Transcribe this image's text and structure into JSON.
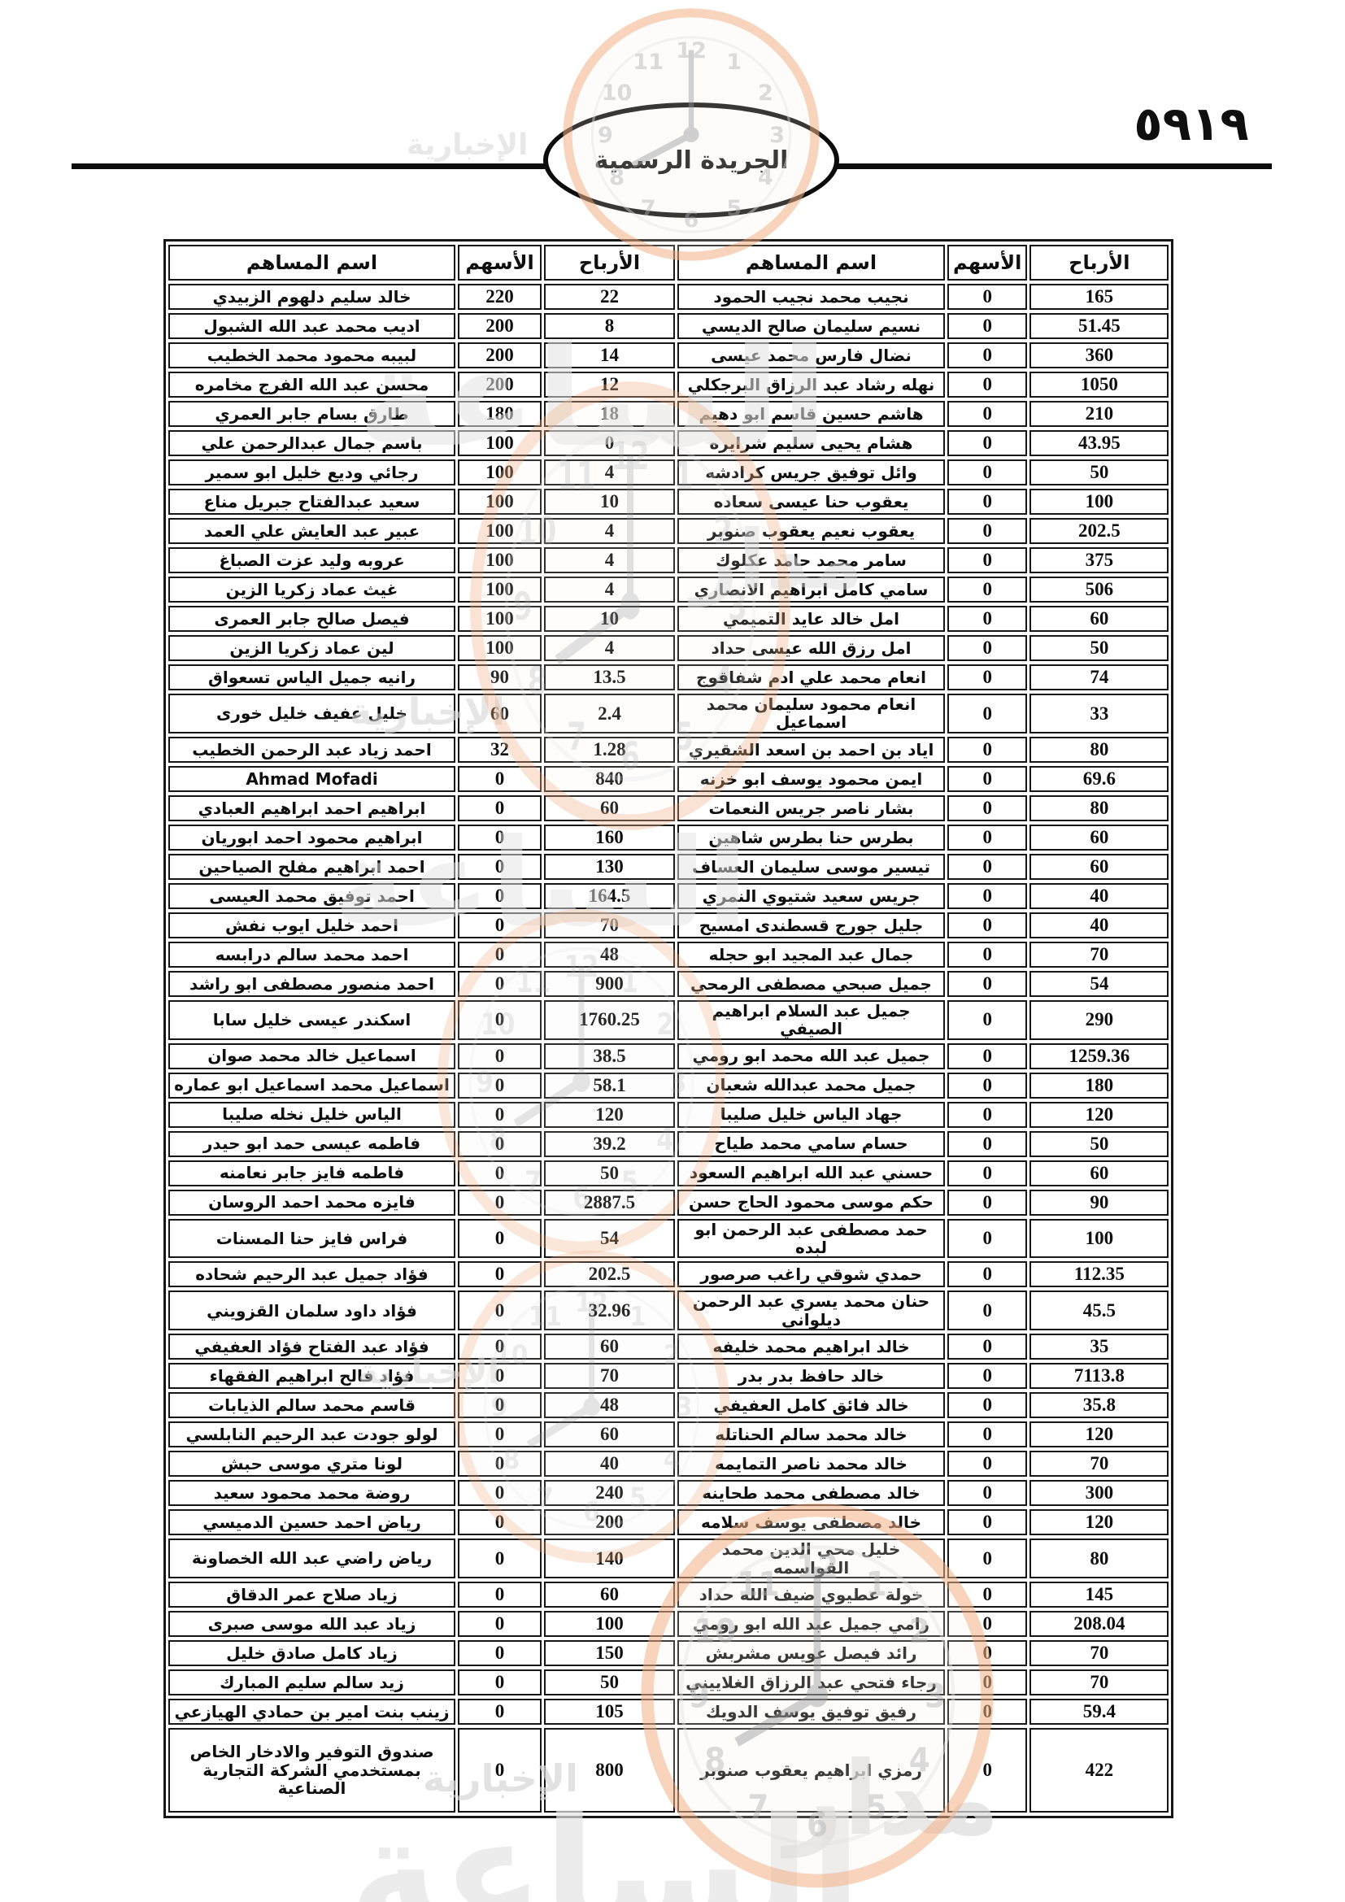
{
  "page": {
    "number_arabic": "٥٩١٩"
  },
  "header": {
    "gazette_title": "الجريدة الرسمية"
  },
  "watermark": {
    "agency_word_madar": "مدار",
    "agency_word_saa": "الساعة",
    "agency_word_akhbaria": "الإخبارية"
  },
  "table": {
    "columns": {
      "name": "اسم المساهم",
      "shares": "الأسهم",
      "profits": "الأرباح"
    },
    "left_rows": [
      [
        "خالد سليم دلهوم الزبيدي",
        "220",
        "22"
      ],
      [
        "اديب محمد عبد الله الشبول",
        "200",
        "8"
      ],
      [
        "لبيبه محمود محمد الخطيب",
        "200",
        "14"
      ],
      [
        "محسن عبد الله الفرج مخامره",
        "200",
        "12"
      ],
      [
        "طارق بسام جابر العمري",
        "180",
        "18"
      ],
      [
        "باسم جمال عبدالرحمن علي",
        "100",
        "0"
      ],
      [
        "رجائي وديع خليل ابو سمير",
        "100",
        "4"
      ],
      [
        "سعيد عبدالفتاح جبريل مناع",
        "100",
        "10"
      ],
      [
        "عبير عبد العايش علي العمد",
        "100",
        "4"
      ],
      [
        "عروبه وليد عزت الصباغ",
        "100",
        "4"
      ],
      [
        "غيث عماد زكريا الزين",
        "100",
        "4"
      ],
      [
        "فيصل صالح جابر العمرى",
        "100",
        "10"
      ],
      [
        "لين عماد زكريا الزين",
        "100",
        "4"
      ],
      [
        "رانيه جميل الياس تسعواق",
        "90",
        "13.5"
      ],
      [
        "خليل عفيف خليل خورى",
        "60",
        "2.4"
      ],
      [
        "احمد زياد عبد الرحمن الخطيب",
        "32",
        "1.28"
      ],
      [
        "Ahmad Mofadi",
        "0",
        "840"
      ],
      [
        "ابراهيم احمد ابراهيم العبادي",
        "0",
        "60"
      ],
      [
        "ابراهيم محمود احمد ابوريان",
        "0",
        "160"
      ],
      [
        "احمد ابراهيم مفلح الصياحين",
        "0",
        "130"
      ],
      [
        "احمد توفيق محمد العيسى",
        "0",
        "164.5"
      ],
      [
        "احمد خليل ايوب نفش",
        "0",
        "70"
      ],
      [
        "احمد محمد سالم درابسه",
        "0",
        "48"
      ],
      [
        "احمد منصور مصطفى ابو راشد",
        "0",
        "900"
      ],
      [
        "اسكندر عيسى خليل سابا",
        "0",
        "1760.25"
      ],
      [
        "اسماعيل خالد محمد صوان",
        "0",
        "38.5"
      ],
      [
        "اسماعيل محمد اسماعيل ابو عماره",
        "0",
        "58.1"
      ],
      [
        "الياس خليل نخله صليبا",
        "0",
        "120"
      ],
      [
        "فاطمه عيسى حمد ابو حيدر",
        "0",
        "39.2"
      ],
      [
        "فاطمه فايز جابر نعامنه",
        "0",
        "50"
      ],
      [
        "فايزه محمد احمد الروسان",
        "0",
        "2887.5"
      ],
      [
        "فراس فايز حنا المسنات",
        "0",
        "54"
      ],
      [
        "فؤاد جميل عبد الرحيم شحاده",
        "0",
        "202.5"
      ],
      [
        "فؤاد داود سلمان القزويني",
        "0",
        "32.96"
      ],
      [
        "فؤاد عبد الفتاح فؤاد العفيفي",
        "0",
        "60"
      ],
      [
        "فؤاد فالح ابراهيم الفقهاء",
        "0",
        "70"
      ],
      [
        "قاسم محمد سالم الذيابات",
        "0",
        "48"
      ],
      [
        "لولو جودت عبد الرحيم النابلسي",
        "0",
        "60"
      ],
      [
        "لونا متري موسى حبش",
        "0",
        "40"
      ],
      [
        "روضة محمد محمود سعيد",
        "0",
        "240"
      ],
      [
        "رياض احمد حسين الدميسي",
        "0",
        "200"
      ],
      [
        "رياض راضي عبد الله الخصاونة",
        "0",
        "140"
      ],
      [
        "زياد صلاح عمر الدقاق",
        "0",
        "60"
      ],
      [
        "زياد عبد الله موسى صبرى",
        "0",
        "100"
      ],
      [
        "زياد كامل صادق خليل",
        "0",
        "150"
      ],
      [
        "زيد سالم سليم المبارك",
        "0",
        "50"
      ],
      [
        "زينب بنت امير بن حمادي الهيازعي",
        "0",
        "105"
      ],
      [
        "صندوق التوفير والادخار الخاص بمستخدمي الشركة التجارية الصناعية",
        "0",
        "800"
      ]
    ],
    "right_rows": [
      [
        "نجيب محمد نجيب الحمود",
        "0",
        "165"
      ],
      [
        "نسيم سليمان صالح الديسي",
        "0",
        "51.45"
      ],
      [
        "نضال فارس محمد عيسى",
        "0",
        "360"
      ],
      [
        "نهله رشاد عبد الرزاق البرجكلي",
        "0",
        "1050"
      ],
      [
        "هاشم حسين قاسم ابو دهيم",
        "0",
        "210"
      ],
      [
        "هشام يحيى سليم شرايره",
        "0",
        "43.95"
      ],
      [
        "وائل توفيق جريس كرادشه",
        "0",
        "50"
      ],
      [
        "يعقوب حنا عيسى سعاده",
        "0",
        "100"
      ],
      [
        "يعقوب نعيم يعقوب صنوبر",
        "0",
        "202.5"
      ],
      [
        "سامر محمد حامد عكلوك",
        "0",
        "375"
      ],
      [
        "سامي كامل ابراهيم الانصاري",
        "0",
        "506"
      ],
      [
        "امل خالد عايد التميمي",
        "0",
        "60"
      ],
      [
        "امل رزق الله عيسى حداد",
        "0",
        "50"
      ],
      [
        "انعام محمد علي ادم شفاقوج",
        "0",
        "74"
      ],
      [
        "انعام محمود سليمان محمد اسماعيل",
        "0",
        "33"
      ],
      [
        "اياد بن احمد بن اسعد الشقيري",
        "0",
        "80"
      ],
      [
        "ايمن محمود يوسف ابو خزنه",
        "0",
        "69.6"
      ],
      [
        "بشار ناصر جريس النعمات",
        "0",
        "80"
      ],
      [
        "بطرس حنا بطرس شاهين",
        "0",
        "60"
      ],
      [
        "تيسير موسى سليمان العساف",
        "0",
        "60"
      ],
      [
        "جريس سعيد شتيوي النمري",
        "0",
        "40"
      ],
      [
        "جليل جورج قسطندى امسيح",
        "0",
        "40"
      ],
      [
        "جمال عبد المجيد ابو حجله",
        "0",
        "70"
      ],
      [
        "جميل صبحي مصطفى الرمحي",
        "0",
        "54"
      ],
      [
        "جميل عبد السلام ابراهيم الصيفي",
        "0",
        "290"
      ],
      [
        "جميل عبد الله محمد ابو رومي",
        "0",
        "1259.36"
      ],
      [
        "جميل محمد عبدالله شعبان",
        "0",
        "180"
      ],
      [
        "جهاد الياس خليل صليبا",
        "0",
        "120"
      ],
      [
        "حسام سامي محمد طياح",
        "0",
        "50"
      ],
      [
        "حسني عبد الله ابراهيم السعود",
        "0",
        "60"
      ],
      [
        "حكم موسى محمود الحاج حسن",
        "0",
        "90"
      ],
      [
        "حمد مصطفى عبد الرحمن ابو لبده",
        "0",
        "100"
      ],
      [
        "حمدي شوقي راغب صرصور",
        "0",
        "112.35"
      ],
      [
        "حنان محمد يسري عبد الرحمن ديلواني",
        "0",
        "45.5"
      ],
      [
        "خالد ابراهيم محمد خليفه",
        "0",
        "35"
      ],
      [
        "خالد حافظ بدر بدر",
        "0",
        "7113.8"
      ],
      [
        "خالد فائق كامل العفيفي",
        "0",
        "35.8"
      ],
      [
        "خالد محمد سالم الحناتله",
        "0",
        "120"
      ],
      [
        "خالد محمد ناصر التمايمه",
        "0",
        "70"
      ],
      [
        "خالد مصطفى محمد طحاينه",
        "0",
        "300"
      ],
      [
        "خالد مصطفى يوسف سلامه",
        "0",
        "120"
      ],
      [
        "خليل محي الدين محمد القواسمه",
        "0",
        "80"
      ],
      [
        "خولة عطيوي ضيف الله حداد",
        "0",
        "145"
      ],
      [
        "رامي جميل عبد الله ابو رومي",
        "0",
        "208.04"
      ],
      [
        "رائد فيصل عويس مشربش",
        "0",
        "70"
      ],
      [
        "رجاء فتحي عبد الرزاق الغلاييني",
        "0",
        "70"
      ],
      [
        "رفيق توفيق يوسف الدويك",
        "0",
        "59.4"
      ],
      [
        "رمزي ابراهيم يعقوب صنوبر",
        "0",
        "422"
      ]
    ]
  }
}
